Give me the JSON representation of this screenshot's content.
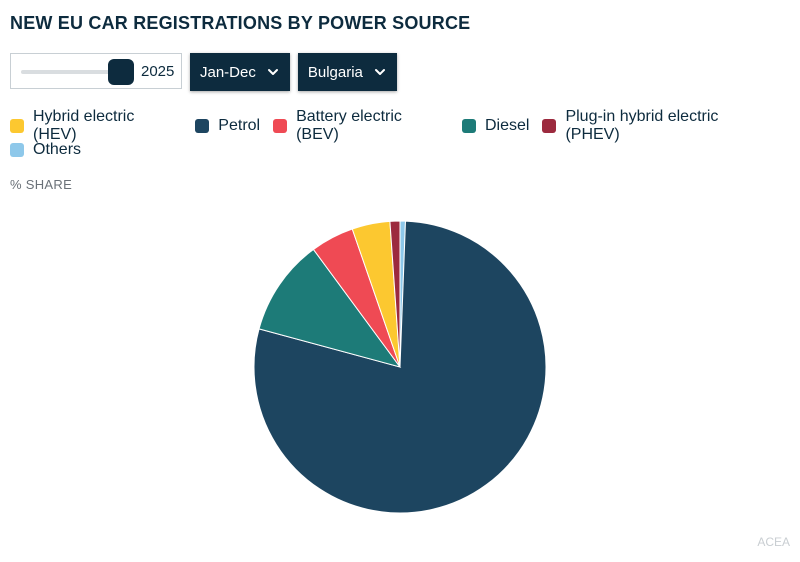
{
  "title": "NEW EU CAR REGISTRATIONS BY POWER SOURCE",
  "controls": {
    "year_slider_value": "2025",
    "period_dropdown": "Jan-Dec",
    "country_dropdown": "Bulgaria"
  },
  "unit_label": "% SHARE",
  "source": "ACEA",
  "icons": {
    "dropdown": "chevron-down-icon"
  },
  "chart_data": {
    "type": "pie",
    "title": "",
    "legend_placement": "top",
    "series": [
      {
        "name": "Hybrid electric (HEV)",
        "value": 4.2,
        "color": "#fcc830"
      },
      {
        "name": "Petrol",
        "value": 78.6,
        "color": "#1d4560"
      },
      {
        "name": "Battery electric (BEV)",
        "value": 4.8,
        "color": "#ef4a54"
      },
      {
        "name": "Diesel",
        "value": 10.7,
        "color": "#1d7b78"
      },
      {
        "name": "Plug-in hybrid electric (PHEV)",
        "value": 1.1,
        "color": "#9c2a3e"
      },
      {
        "name": "Others",
        "value": 0.6,
        "color": "#8ec8ea"
      }
    ],
    "slice_order": [
      "Others",
      "Petrol",
      "Diesel",
      "Battery electric (BEV)",
      "Hybrid electric (HEV)",
      "Plug-in hybrid electric (PHEV)"
    ]
  }
}
